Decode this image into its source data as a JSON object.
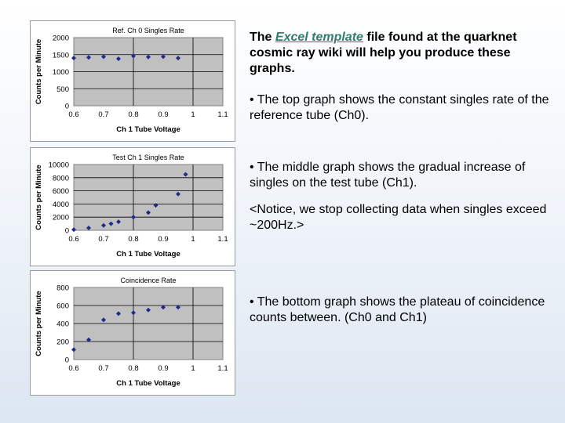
{
  "intro": {
    "before": "The ",
    "link": "Excel template",
    "after": " file found at the quarknet cosmic ray wiki will help you produce these graphs."
  },
  "bullets": [
    "• The top graph shows the constant singles rate of the reference tube (Ch0).",
    "• The middle graph shows the gradual increase of singles on the test tube (Ch1).",
    "<Notice, we stop collecting data when singles exceed ~200Hz.>",
    "• The bottom graph shows the plateau of coincidence counts between. (Ch0 and Ch1)"
  ],
  "chart_data": [
    {
      "type": "scatter",
      "title": "Ref. Ch 0 Singles Rate",
      "xlabel": "Ch 1 Tube Voltage",
      "ylabel": "Counts per Minute",
      "xlim": [
        0.6,
        1.1
      ],
      "ylim": [
        0,
        2000
      ],
      "xticks": [
        "0.6",
        "0.7",
        "0.8",
        "0.9",
        "1",
        "1.1"
      ],
      "yticks": [
        "0",
        "500",
        "1000",
        "1500",
        "2000"
      ],
      "grid": true,
      "x": [
        0.6,
        0.65,
        0.7,
        0.75,
        0.8,
        0.85,
        0.9,
        0.95
      ],
      "y": [
        1400,
        1420,
        1440,
        1380,
        1460,
        1430,
        1440,
        1400
      ]
    },
    {
      "type": "scatter",
      "title": "Test Ch 1 Singles Rate",
      "xlabel": "Ch 1 Tube Voltage",
      "ylabel": "Counts per Minute",
      "xlim": [
        0.6,
        1.1
      ],
      "ylim": [
        0,
        10000
      ],
      "xticks": [
        "0.6",
        "0.7",
        "0.8",
        "0.9",
        "1",
        "1.1"
      ],
      "yticks": [
        "0",
        "2000",
        "4000",
        "6000",
        "8000",
        "10000"
      ],
      "grid": true,
      "x": [
        0.6,
        0.65,
        0.7,
        0.725,
        0.75,
        0.8,
        0.85,
        0.875,
        0.95,
        0.975
      ],
      "y": [
        100,
        350,
        750,
        1000,
        1300,
        2000,
        2700,
        3800,
        5500,
        8500
      ]
    },
    {
      "type": "scatter",
      "title": "Coincidence Rate",
      "xlabel": "Ch 1 Tube Voltage",
      "ylabel": "Counts per Minute",
      "xlim": [
        0.6,
        1.1
      ],
      "ylim": [
        0,
        800
      ],
      "xticks": [
        "0.6",
        "0.7",
        "0.8",
        "0.9",
        "1",
        "1.1"
      ],
      "yticks": [
        "0",
        "200",
        "400",
        "600",
        "800"
      ],
      "grid": true,
      "x": [
        0.6,
        0.65,
        0.7,
        0.75,
        0.8,
        0.85,
        0.9,
        0.95
      ],
      "y": [
        110,
        220,
        440,
        510,
        520,
        550,
        580,
        580
      ]
    }
  ]
}
